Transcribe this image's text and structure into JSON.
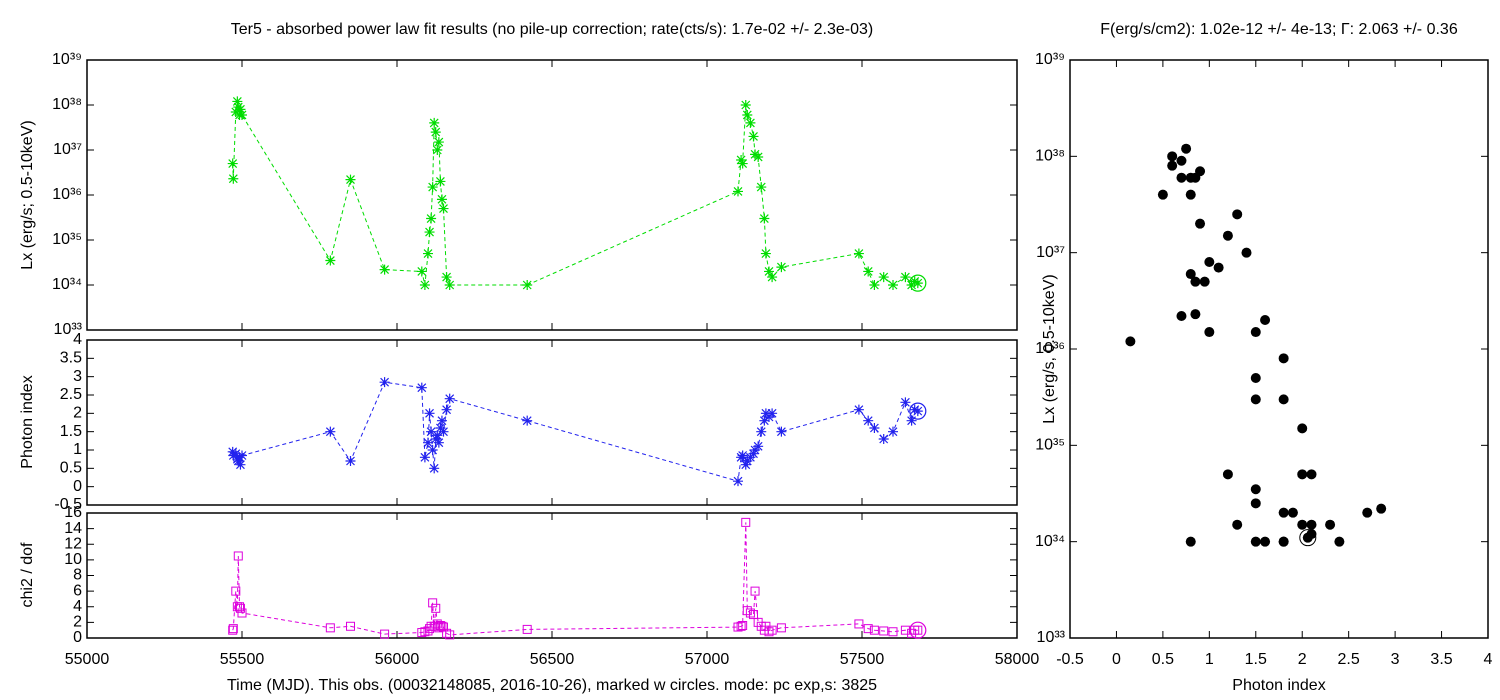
{
  "chart_data": [
    {
      "type": "line",
      "title": "Ter5  - absorbed power law fit results (no pile-up correction; rate(cts/s): 1.7e-02 +/- 2.3e-03)",
      "ylabel": "Lx (erg/s; 0.5-10keV)",
      "color": "#00dd00",
      "marker": "asterisk",
      "ylog": true,
      "show_xtick_labels": false,
      "xlim": [
        55000,
        58000
      ],
      "xticks": [
        55000,
        55500,
        56000,
        56500,
        57000,
        57500,
        58000
      ],
      "ylim": [
        1e+33,
        1e+39
      ],
      "yticks": [
        {
          "value": 1e+33,
          "label": "10³³"
        },
        {
          "value": 1e+34,
          "label": "10³⁴"
        },
        {
          "value": 1e+35,
          "label": "10³⁵"
        },
        {
          "value": 1e+36,
          "label": "10³⁶"
        },
        {
          "value": 1e+37,
          "label": "10³⁷"
        },
        {
          "value": 1e+38,
          "label": "10³⁸"
        },
        {
          "value": 1e+39,
          "label": "10³⁹"
        }
      ],
      "x": [
        55470,
        55472,
        55480,
        55485,
        55488,
        55492,
        55495,
        55500,
        55785,
        55850,
        55960,
        56080,
        56090,
        56100,
        56105,
        56110,
        56115,
        56120,
        56125,
        56130,
        56135,
        56140,
        56145,
        56150,
        56160,
        56170,
        56420,
        57100,
        57110,
        57115,
        57125,
        57130,
        57140,
        57150,
        57155,
        57165,
        57175,
        57185,
        57190,
        57200,
        57210,
        57240,
        57490,
        57520,
        57540,
        57570,
        57600,
        57640,
        57660,
        57670,
        57680
      ],
      "values": [
        5e+36,
        2.3e+36,
        7e+37,
        1.2e+38,
        9e+37,
        6e+37,
        8e+37,
        6e+37,
        3.5e+34,
        2.2e+36,
        2.2e+34,
        2e+34,
        1e+34,
        5e+34,
        1.5e+35,
        3e+35,
        1.5e+36,
        4e+37,
        2.5e+37,
        1e+37,
        1.5e+37,
        2e+36,
        8e+35,
        5e+35,
        1.5e+34,
        1e+34,
        1e+34,
        1.2e+36,
        6e+36,
        5e+36,
        1e+38,
        6e+37,
        4e+37,
        2e+37,
        8e+36,
        7e+36,
        1.5e+36,
        3e+35,
        5e+34,
        2e+34,
        1.5e+34,
        2.5e+34,
        5e+34,
        2e+34,
        1e+34,
        1.5e+34,
        1e+34,
        1.5e+34,
        1e+34,
        1.2e+34,
        1.1e+34
      ]
    },
    {
      "type": "line",
      "ylabel": "Photon index",
      "color": "#2222ee",
      "marker": "asterisk",
      "ylog": false,
      "show_xtick_labels": false,
      "xlim": [
        55000,
        58000
      ],
      "xticks": [
        55000,
        55500,
        56000,
        56500,
        57000,
        57500,
        58000
      ],
      "ylim": [
        -0.5,
        4
      ],
      "yticks": [
        -0.5,
        0,
        0.5,
        1,
        1.5,
        2,
        2.5,
        3,
        3.5,
        4
      ],
      "x": [
        55470,
        55472,
        55480,
        55485,
        55488,
        55492,
        55495,
        55500,
        55785,
        55850,
        55960,
        56080,
        56090,
        56100,
        56105,
        56110,
        56115,
        56120,
        56125,
        56130,
        56135,
        56140,
        56145,
        56150,
        56160,
        56170,
        56420,
        57100,
        57110,
        57115,
        57125,
        57130,
        57140,
        57150,
        57155,
        57165,
        57175,
        57185,
        57190,
        57200,
        57210,
        57240,
        57490,
        57520,
        57540,
        57570,
        57600,
        57640,
        57660,
        57670,
        57680
      ],
      "values": [
        0.95,
        0.85,
        0.9,
        0.75,
        0.7,
        0.8,
        0.6,
        0.85,
        1.5,
        0.7,
        2.85,
        2.7,
        0.8,
        1.2,
        2.0,
        1.5,
        1.0,
        0.5,
        1.3,
        1.4,
        1.2,
        1.6,
        1.8,
        1.5,
        2.1,
        2.4,
        1.8,
        0.15,
        0.8,
        0.85,
        0.6,
        0.7,
        0.8,
        0.9,
        1.0,
        1.1,
        1.5,
        1.8,
        2.0,
        1.9,
        2.0,
        1.5,
        2.1,
        1.8,
        1.6,
        1.3,
        1.5,
        2.3,
        1.8,
        2.1,
        2.06
      ]
    },
    {
      "type": "line",
      "ylabel": "chi2 / dof",
      "xlabel": "Time (MJD). This obs. (00032148085, 2016-10-26), marked w circles. mode: pc exp,s: 3825",
      "color": "#dd00dd",
      "marker": "square",
      "ylog": false,
      "show_xtick_labels": true,
      "xlim": [
        55000,
        58000
      ],
      "xticks": [
        55000,
        55500,
        56000,
        56500,
        57000,
        57500,
        58000
      ],
      "ylim": [
        0,
        16
      ],
      "yticks": [
        0,
        2,
        4,
        6,
        8,
        10,
        12,
        14,
        16
      ],
      "x": [
        55470,
        55472,
        55480,
        55485,
        55488,
        55492,
        55495,
        55500,
        55785,
        55850,
        55960,
        56080,
        56090,
        56100,
        56105,
        56110,
        56115,
        56120,
        56125,
        56130,
        56135,
        56140,
        56145,
        56150,
        56160,
        56170,
        56420,
        57100,
        57110,
        57115,
        57125,
        57130,
        57140,
        57150,
        57155,
        57165,
        57175,
        57185,
        57190,
        57200,
        57210,
        57240,
        57490,
        57520,
        57540,
        57570,
        57600,
        57640,
        57660,
        57670,
        57680
      ],
      "values": [
        1.0,
        1.2,
        6,
        4,
        10.5,
        4,
        3.8,
        3.2,
        1.3,
        1.5,
        0.5,
        0.7,
        0.8,
        0.9,
        1.2,
        1.5,
        4.5,
        1.5,
        3.8,
        1.8,
        1.3,
        1.6,
        1.5,
        1.4,
        0.6,
        0.4,
        1.1,
        1.4,
        1.5,
        1.6,
        14.8,
        3.5,
        3.2,
        3.0,
        6,
        2,
        1.5,
        1.0,
        1.5,
        0.8,
        1.0,
        1.3,
        1.8,
        1.2,
        1.0,
        0.9,
        0.8,
        1.0,
        0.6,
        1.0,
        1.0
      ]
    },
    {
      "type": "scatter",
      "title": "F(erg/s/cm2): 1.02e-12 +/- 4e-13; Γ: 2.063 +/- 0.36",
      "xlabel": "Photon index",
      "ylabel": "Lx (erg/s, 0.5-10keV)",
      "color": "#000000",
      "ylog": true,
      "show_xtick_labels": true,
      "xlim": [
        -0.5,
        4
      ],
      "xticks": [
        -0.5,
        0,
        0.5,
        1,
        1.5,
        2,
        2.5,
        3,
        3.5,
        4
      ],
      "ylim": [
        1e+33,
        1e+39
      ],
      "yticks": [
        {
          "value": 1e+33,
          "label": "10³³"
        },
        {
          "value": 1e+34,
          "label": "10³⁴"
        },
        {
          "value": 1e+35,
          "label": "10³⁵"
        },
        {
          "value": 1e+36,
          "label": "10³⁶"
        },
        {
          "value": 1e+37,
          "label": "10³⁷"
        },
        {
          "value": 1e+38,
          "label": "10³⁸"
        },
        {
          "value": 1e+39,
          "label": "10³⁹"
        }
      ],
      "x": [
        0.95,
        0.85,
        0.9,
        0.75,
        0.7,
        0.8,
        0.6,
        0.85,
        1.5,
        0.7,
        2.85,
        2.7,
        0.8,
        1.2,
        2.0,
        1.5,
        1.0,
        0.5,
        1.3,
        1.4,
        1.2,
        1.6,
        1.8,
        1.5,
        2.1,
        2.4,
        1.8,
        0.15,
        0.8,
        0.85,
        0.6,
        0.7,
        0.8,
        0.9,
        1.0,
        1.1,
        1.5,
        1.8,
        2.0,
        1.9,
        2.0,
        1.5,
        2.1,
        1.8,
        1.6,
        1.3,
        1.5,
        2.3,
        1.8,
        2.1,
        2.06
      ],
      "values": [
        5e+36,
        2.3e+36,
        7e+37,
        1.2e+38,
        9e+37,
        6e+37,
        8e+37,
        6e+37,
        3.5e+34,
        2.2e+36,
        2.2e+34,
        2e+34,
        1e+34,
        5e+34,
        1.5e+35,
        3e+35,
        1.5e+36,
        4e+37,
        2.5e+37,
        1e+37,
        1.5e+37,
        2e+36,
        8e+35,
        5e+35,
        1.5e+34,
        1e+34,
        1e+34,
        1.2e+36,
        6e+36,
        5e+36,
        1e+38,
        6e+37,
        4e+37,
        2e+37,
        8e+36,
        7e+36,
        1.5e+36,
        3e+35,
        5e+34,
        2e+34,
        1.5e+34,
        2.5e+34,
        5e+34,
        2e+34,
        1e+34,
        1.5e+34,
        1e+34,
        1.5e+34,
        1e+34,
        1.2e+34,
        1.1e+34
      ]
    }
  ]
}
